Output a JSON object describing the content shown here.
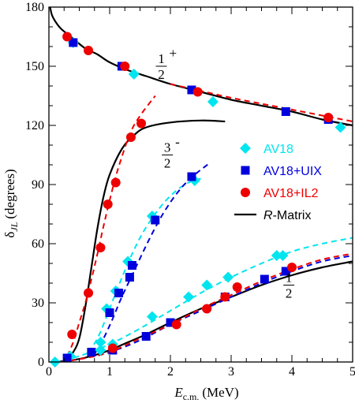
{
  "chart_data": {
    "type": "scatter",
    "title": "",
    "xlabel": {
      "main": "E",
      "sub": "c.m.",
      "unit": "(MeV)"
    },
    "ylabel": {
      "main": "δ",
      "sub": "JL",
      "unit": "(degrees)"
    },
    "xlim": [
      0,
      5
    ],
    "ylim": [
      0,
      180
    ],
    "xticks": [
      "0",
      "1",
      "2",
      "3",
      "4",
      "5"
    ],
    "yticks": [
      "0",
      "30",
      "60",
      "90",
      "120",
      "150",
      "180"
    ],
    "grid": false,
    "legend_position": "right",
    "colors": {
      "av18": "#00e5ee",
      "uix": "#0000dd",
      "il2": "#ee0000",
      "rmatrix": "#000000"
    },
    "legend": [
      {
        "label": "AV18",
        "marker": "diamond",
        "color": "#00e5ee"
      },
      {
        "label": "AV18+UIX",
        "marker": "square",
        "color": "#0000dd"
      },
      {
        "label": "AV18+IL2",
        "marker": "circle",
        "color": "#ee0000"
      },
      {
        "label": "R-Matrix",
        "marker": "line",
        "color": "#000000"
      }
    ],
    "annotations": [
      {
        "numerator": "1",
        "sign": "+",
        "denominator": "2",
        "x": 1.85,
        "y": 150
      },
      {
        "numerator": "3",
        "sign": "-",
        "denominator": "2",
        "x": 1.95,
        "y": 105
      },
      {
        "numerator": "1",
        "sign": "-",
        "denominator": "2",
        "x": 3.95,
        "y": 39
      }
    ],
    "series": [
      {
        "group": "AV18",
        "wave": "1/2+",
        "style": "markers",
        "marker": "diamond",
        "color": "#00e5ee",
        "points": [
          [
            0.4,
            162
          ],
          [
            1.4,
            146
          ],
          [
            2.7,
            132
          ],
          [
            4.8,
            119
          ]
        ]
      },
      {
        "group": "AV18+UIX",
        "wave": "1/2+",
        "style": "markers",
        "marker": "square",
        "color": "#0000dd",
        "points": [
          [
            0.4,
            162
          ],
          [
            1.2,
            150
          ],
          [
            2.35,
            138
          ],
          [
            3.9,
            127
          ],
          [
            4.6,
            123
          ]
        ]
      },
      {
        "group": "AV18+IL2",
        "wave": "1/2+",
        "style": "markers",
        "marker": "circle",
        "color": "#ee0000",
        "points": [
          [
            0.3,
            165
          ],
          [
            0.65,
            158
          ],
          [
            1.25,
            150
          ],
          [
            2.45,
            137
          ],
          [
            4.6,
            124
          ]
        ]
      },
      {
        "group": "R-Matrix",
        "wave": "1/2+",
        "style": "line",
        "color": "#000000",
        "points": [
          [
            0.02,
            180
          ],
          [
            0.05,
            176
          ],
          [
            0.1,
            173
          ],
          [
            0.2,
            169
          ],
          [
            0.4,
            164
          ],
          [
            0.6,
            159
          ],
          [
            0.8,
            156
          ],
          [
            1.0,
            152
          ],
          [
            1.3,
            148
          ],
          [
            1.6,
            145
          ],
          [
            2.0,
            141
          ],
          [
            2.5,
            137
          ],
          [
            3.0,
            133
          ],
          [
            3.5,
            130
          ],
          [
            4.0,
            127
          ],
          [
            4.5,
            123
          ],
          [
            5.0,
            120
          ]
        ]
      },
      {
        "group": "AV18+IL2",
        "wave": "1/2+",
        "style": "dashed",
        "color": "#ee0000",
        "points": [
          [
            2.0,
            141
          ],
          [
            2.5,
            137.5
          ],
          [
            3.0,
            134
          ],
          [
            3.5,
            131
          ],
          [
            4.0,
            128
          ],
          [
            4.5,
            125
          ],
          [
            5.0,
            122
          ]
        ]
      },
      {
        "group": "AV18",
        "wave": "3/2-",
        "style": "markers",
        "marker": "diamond",
        "color": "#00e5ee",
        "points": [
          [
            0.35,
            3
          ],
          [
            0.85,
            10
          ],
          [
            0.95,
            27
          ],
          [
            1.1,
            36
          ],
          [
            1.3,
            51
          ],
          [
            1.7,
            74
          ],
          [
            2.4,
            92
          ]
        ]
      },
      {
        "group": "AV18+UIX",
        "wave": "3/2-",
        "style": "markers",
        "marker": "square",
        "color": "#0000dd",
        "points": [
          [
            0.3,
            2
          ],
          [
            0.7,
            5
          ],
          [
            1.0,
            25
          ],
          [
            1.15,
            35
          ],
          [
            1.33,
            43
          ],
          [
            1.37,
            49
          ],
          [
            1.75,
            72
          ],
          [
            2.35,
            94
          ]
        ]
      },
      {
        "group": "AV18+IL2",
        "wave": "3/2-",
        "style": "markers",
        "marker": "circle",
        "color": "#ee0000",
        "points": [
          [
            0.38,
            14
          ],
          [
            0.65,
            35
          ],
          [
            0.85,
            58
          ],
          [
            0.97,
            80
          ],
          [
            1.1,
            91
          ],
          [
            1.35,
            114
          ],
          [
            1.52,
            121
          ]
        ]
      },
      {
        "group": "R-Matrix",
        "wave": "3/2-",
        "style": "line",
        "color": "#000000",
        "points": [
          [
            0.3,
            2
          ],
          [
            0.4,
            5
          ],
          [
            0.5,
            12
          ],
          [
            0.6,
            28
          ],
          [
            0.7,
            48
          ],
          [
            0.8,
            68
          ],
          [
            0.9,
            84
          ],
          [
            1.0,
            95
          ],
          [
            1.2,
            108
          ],
          [
            1.4,
            115
          ],
          [
            1.6,
            119
          ],
          [
            2.0,
            121.5
          ],
          [
            2.5,
            122.5
          ],
          [
            2.9,
            122
          ]
        ]
      },
      {
        "group": "AV18+IL2",
        "wave": "3/2-",
        "style": "dashed",
        "color": "#ee0000",
        "points": [
          [
            0.3,
            3
          ],
          [
            0.4,
            10
          ],
          [
            0.5,
            20
          ],
          [
            0.6,
            30
          ],
          [
            0.7,
            42
          ],
          [
            0.8,
            55
          ],
          [
            0.9,
            69
          ],
          [
            1.0,
            82
          ],
          [
            1.1,
            94
          ],
          [
            1.2,
            104
          ],
          [
            1.3,
            113
          ],
          [
            1.4,
            120
          ],
          [
            1.55,
            127
          ],
          [
            1.75,
            135
          ]
        ]
      },
      {
        "group": "AV18",
        "wave": "3/2-",
        "style": "dashed",
        "color": "#00e5ee",
        "points": [
          [
            0.65,
            5
          ],
          [
            0.8,
            12
          ],
          [
            0.95,
            23
          ],
          [
            1.1,
            35
          ],
          [
            1.3,
            50
          ],
          [
            1.5,
            63
          ],
          [
            1.7,
            73
          ],
          [
            1.9,
            81
          ],
          [
            2.1,
            87
          ],
          [
            2.3,
            91
          ],
          [
            2.5,
            93
          ]
        ]
      },
      {
        "group": "AV18+UIX",
        "wave": "3/2-",
        "style": "dashed",
        "color": "#0000dd",
        "points": [
          [
            0.75,
            4
          ],
          [
            0.9,
            12
          ],
          [
            1.05,
            22
          ],
          [
            1.2,
            33
          ],
          [
            1.4,
            46
          ],
          [
            1.6,
            59
          ],
          [
            1.8,
            71
          ],
          [
            2.0,
            81
          ],
          [
            2.2,
            89
          ],
          [
            2.4,
            95
          ],
          [
            2.65,
            101
          ]
        ]
      },
      {
        "group": "AV18",
        "wave": "1/2-",
        "style": "markers",
        "marker": "diamond",
        "color": "#00e5ee",
        "points": [
          [
            0.1,
            0
          ],
          [
            0.85,
            6
          ],
          [
            1.05,
            9
          ],
          [
            1.7,
            23
          ],
          [
            2.3,
            33
          ],
          [
            2.6,
            39
          ],
          [
            2.95,
            43
          ],
          [
            3.75,
            54
          ],
          [
            3.85,
            54
          ]
        ]
      },
      {
        "group": "AV18+UIX",
        "wave": "1/2-",
        "style": "markers",
        "marker": "square",
        "color": "#0000dd",
        "points": [
          [
            1.05,
            6
          ],
          [
            1.6,
            13
          ],
          [
            2.0,
            20
          ],
          [
            2.9,
            33
          ],
          [
            3.55,
            42
          ],
          [
            3.9,
            46
          ]
        ]
      },
      {
        "group": "AV18+IL2",
        "wave": "1/2-",
        "style": "markers",
        "marker": "circle",
        "color": "#ee0000",
        "points": [
          [
            1.05,
            7
          ],
          [
            2.1,
            19
          ],
          [
            2.6,
            27
          ],
          [
            2.9,
            33
          ],
          [
            3.1,
            38
          ],
          [
            4.0,
            48
          ]
        ]
      },
      {
        "group": "R-Matrix",
        "wave": "1/2-",
        "style": "line",
        "color": "#000000",
        "points": [
          [
            0.1,
            0
          ],
          [
            0.4,
            1
          ],
          [
            0.7,
            3
          ],
          [
            1.0,
            6
          ],
          [
            1.3,
            10
          ],
          [
            1.6,
            14
          ],
          [
            2.0,
            20
          ],
          [
            2.5,
            27
          ],
          [
            3.0,
            33
          ],
          [
            3.5,
            39
          ],
          [
            4.0,
            44
          ],
          [
            4.5,
            48
          ],
          [
            5.0,
            51
          ]
        ]
      },
      {
        "group": "AV18",
        "wave": "1/2-",
        "style": "dashed",
        "color": "#00e5ee",
        "points": [
          [
            0.1,
            0
          ],
          [
            0.5,
            3
          ],
          [
            1.0,
            9
          ],
          [
            1.5,
            17
          ],
          [
            2.0,
            26
          ],
          [
            2.5,
            35
          ],
          [
            3.0,
            43
          ],
          [
            3.5,
            50
          ],
          [
            4.0,
            56
          ],
          [
            4.5,
            60
          ],
          [
            5.0,
            63
          ]
        ]
      },
      {
        "group": "AV18+UIX",
        "wave": "1/2-",
        "style": "dashed",
        "color": "#0000dd",
        "points": [
          [
            0.2,
            0
          ],
          [
            0.6,
            2
          ],
          [
            1.0,
            5
          ],
          [
            1.5,
            11
          ],
          [
            2.0,
            19
          ],
          [
            2.5,
            26
          ],
          [
            3.0,
            33
          ],
          [
            3.5,
            40
          ],
          [
            4.0,
            46
          ],
          [
            4.5,
            51
          ],
          [
            5.0,
            54
          ]
        ]
      },
      {
        "group": "AV18+IL2",
        "wave": "1/2-",
        "style": "dashed",
        "color": "#ee0000",
        "points": [
          [
            0.2,
            0
          ],
          [
            0.6,
            2
          ],
          [
            1.0,
            5
          ],
          [
            1.5,
            12
          ],
          [
            2.0,
            19
          ],
          [
            2.5,
            27
          ],
          [
            3.0,
            34
          ],
          [
            3.5,
            41
          ],
          [
            4.0,
            47
          ],
          [
            4.5,
            52
          ],
          [
            5.0,
            55
          ]
        ]
      }
    ]
  }
}
